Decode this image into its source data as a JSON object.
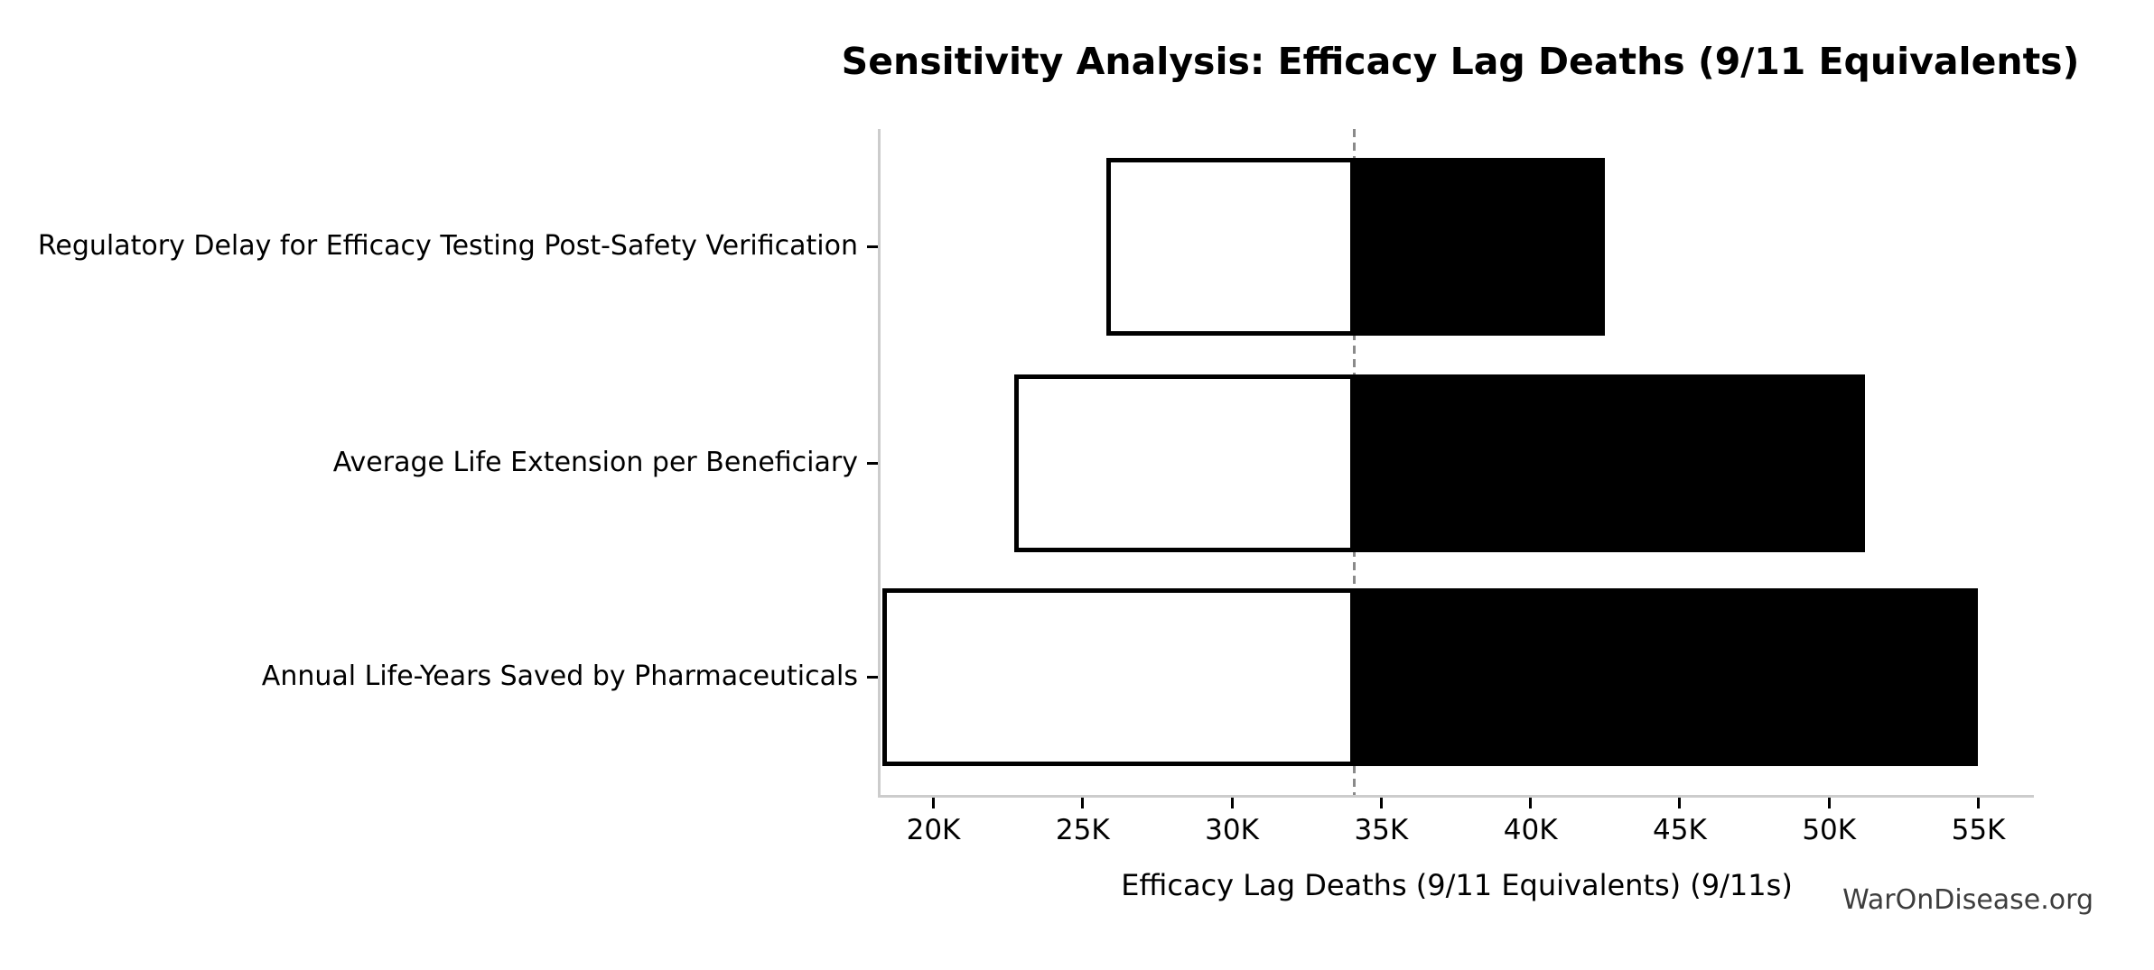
{
  "title": "Sensitivity Analysis: Efficacy Lag Deaths (9/11 Equivalents)",
  "watermark": "WarOnDisease.org",
  "chart_data": {
    "type": "bar",
    "subtype": "tornado-horizontal",
    "title": "Sensitivity Analysis: Efficacy Lag Deaths (9/11 Equivalents)",
    "xlabel": "Efficacy Lag Deaths (9/11 Equivalents) (9/11s)",
    "ylabel": "",
    "categories": [
      "Regulatory Delay for Efficacy Testing Post-Safety Verification",
      "Average Life Extension per Beneficiary",
      "Annual Life-Years Saved by Pharmaceuticals"
    ],
    "category_order": "top-to-bottom",
    "baseline": 34100,
    "series": [
      {
        "name": "low-value-segment",
        "values": [
          25800,
          22700,
          18300
        ]
      },
      {
        "name": "high-value-segment",
        "values": [
          42500,
          51200,
          55000
        ]
      }
    ],
    "xlim": [
      18200,
      56800
    ],
    "xticks": [
      20000,
      25000,
      30000,
      35000,
      40000,
      45000,
      50000,
      55000
    ],
    "xtick_labels": [
      "20K",
      "25K",
      "30K",
      "35K",
      "40K",
      "45K",
      "50K",
      "55K"
    ],
    "grid": false,
    "legend": "none",
    "colors": {
      "low_fill": "#ffffff",
      "high_fill": "#000000",
      "bar_edge": "#000000",
      "baseline_line": "#8a8a8a",
      "spine": "#cccccc",
      "tick": "#000000",
      "text": "#000000",
      "watermark": "#3d3d3d",
      "background": "#ffffff"
    }
  }
}
